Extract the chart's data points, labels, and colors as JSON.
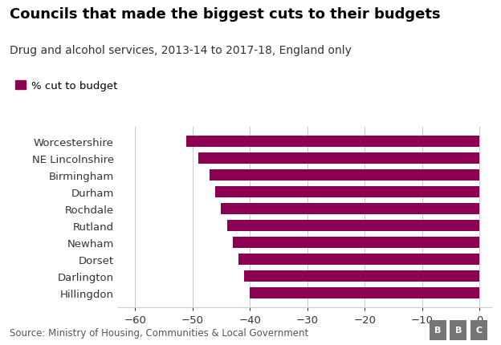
{
  "title": "Councils that made the biggest cuts to their budgets",
  "subtitle": "Drug and alcohol services, 2013-14 to 2017-18, England only",
  "legend_label": "% cut to budget",
  "source": "Source: Ministry of Housing, Communities & Local Government",
  "categories": [
    "Hillingdon",
    "Darlington",
    "Dorset",
    "Newham",
    "Rutland",
    "Rochdale",
    "Durham",
    "Birmingham",
    "NE Lincolnshire",
    "Worcestershire"
  ],
  "values": [
    -40,
    -41,
    -42,
    -43,
    -44,
    -45,
    -46,
    -47,
    -49,
    -51
  ],
  "bar_color": "#8B0051",
  "xlim": [
    -63,
    2
  ],
  "xticks": [
    -60,
    -50,
    -40,
    -30,
    -20,
    -10,
    0
  ],
  "background_color": "#ffffff",
  "grid_color": "#cccccc",
  "title_fontsize": 13,
  "subtitle_fontsize": 10,
  "axis_fontsize": 9.5,
  "source_fontsize": 8.5
}
